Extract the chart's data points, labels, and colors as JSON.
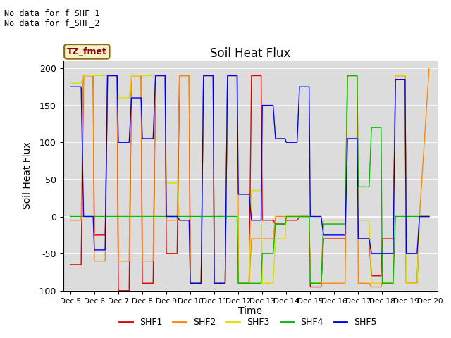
{
  "title": "Soil Heat Flux",
  "ylabel": "Soil Heat Flux",
  "xlabel": "Time",
  "note1": "No data for f_SHF_1",
  "note2": "No data for f_SHF_2",
  "box_label": "TZ_fmet",
  "ylim": [
    -100,
    210
  ],
  "xlim": [
    4.7,
    20.3
  ],
  "background_color": "#dcdcdc",
  "series": {
    "SHF1": {
      "color": "#dd0000",
      "x": [
        5.0,
        5.45,
        5.55,
        5.95,
        6.0,
        6.45,
        6.55,
        6.95,
        7.0,
        7.45,
        7.55,
        7.95,
        8.0,
        8.45,
        8.55,
        8.95,
        9.0,
        9.45,
        9.55,
        9.95,
        10.0,
        10.45,
        10.55,
        10.95,
        11.0,
        11.45,
        11.55,
        11.95,
        12.0,
        12.45,
        12.55,
        12.95,
        13.0,
        13.45,
        13.55,
        13.95,
        14.0,
        14.45,
        14.55,
        14.95,
        15.0,
        15.45,
        15.55,
        15.95,
        16.0,
        16.45,
        16.55,
        16.95,
        17.0,
        17.45,
        17.55,
        17.95,
        18.0,
        18.45,
        18.55,
        18.95,
        19.0,
        19.45,
        19.55,
        19.95
      ],
      "y": [
        -65,
        -65,
        190,
        190,
        -25,
        -25,
        190,
        190,
        -100,
        -100,
        190,
        190,
        -90,
        -90,
        190,
        190,
        -50,
        -50,
        190,
        190,
        -90,
        -90,
        190,
        190,
        -90,
        -90,
        190,
        190,
        -90,
        -90,
        190,
        190,
        -5,
        -5,
        -10,
        -10,
        -5,
        -5,
        0,
        0,
        -95,
        -95,
        -30,
        -30,
        -30,
        -30,
        190,
        190,
        -30,
        -30,
        -80,
        -80,
        -30,
        -30,
        190,
        190,
        -90,
        -90,
        0,
        0
      ]
    },
    "SHF2": {
      "color": "#ff8800",
      "x": [
        5.0,
        5.45,
        5.55,
        5.95,
        6.0,
        6.45,
        6.55,
        6.95,
        7.0,
        7.45,
        7.55,
        7.95,
        8.0,
        8.45,
        8.55,
        8.95,
        9.0,
        9.45,
        9.55,
        9.95,
        10.0,
        10.45,
        10.55,
        10.95,
        11.0,
        11.45,
        11.55,
        11.95,
        12.0,
        12.45,
        12.55,
        12.95,
        13.0,
        13.45,
        13.55,
        13.95,
        14.0,
        14.45,
        14.55,
        14.95,
        15.0,
        15.45,
        15.55,
        15.95,
        16.0,
        16.45,
        16.55,
        16.95,
        17.0,
        17.45,
        17.55,
        17.95,
        18.0,
        18.45,
        18.55,
        18.95,
        19.0,
        19.45,
        19.55,
        19.95
      ],
      "y": [
        -5,
        -5,
        190,
        190,
        -60,
        -60,
        190,
        190,
        -60,
        -60,
        190,
        190,
        -60,
        -60,
        190,
        190,
        -5,
        -5,
        190,
        190,
        -90,
        -90,
        190,
        190,
        -90,
        -90,
        190,
        190,
        -90,
        -90,
        -30,
        -30,
        -30,
        -30,
        0,
        0,
        0,
        0,
        0,
        0,
        -90,
        -90,
        -90,
        -90,
        -90,
        -90,
        190,
        190,
        -90,
        -90,
        -95,
        -95,
        -90,
        -90,
        190,
        190,
        -90,
        -90,
        0,
        200
      ]
    },
    "SHF3": {
      "color": "#dddd00",
      "x": [
        5.0,
        5.45,
        5.55,
        5.95,
        6.0,
        6.45,
        6.55,
        6.95,
        7.0,
        7.45,
        7.55,
        7.95,
        8.0,
        8.45,
        8.55,
        8.95,
        9.0,
        9.45,
        9.55,
        9.95,
        10.0,
        10.45,
        10.55,
        10.95,
        11.0,
        11.45,
        11.55,
        11.95,
        12.0,
        12.45,
        12.55,
        12.95,
        13.0,
        13.45,
        13.55,
        13.95,
        14.0,
        14.45,
        14.55,
        14.95,
        15.0,
        15.45,
        15.55,
        15.95,
        16.0,
        16.45,
        16.55,
        16.95,
        17.0,
        17.45,
        17.55,
        17.95,
        18.0,
        18.45,
        18.55,
        18.95,
        19.0,
        19.45,
        19.55,
        19.95
      ],
      "y": [
        180,
        180,
        190,
        190,
        190,
        190,
        190,
        190,
        160,
        160,
        190,
        190,
        190,
        190,
        190,
        190,
        45,
        45,
        -5,
        -5,
        -90,
        -90,
        190,
        190,
        -90,
        -90,
        190,
        190,
        -90,
        -90,
        35,
        35,
        -90,
        -90,
        -30,
        -30,
        0,
        0,
        0,
        0,
        -90,
        -90,
        -5,
        -5,
        -5,
        -5,
        190,
        190,
        -5,
        -5,
        -90,
        -90,
        -90,
        -90,
        190,
        190,
        -90,
        -90,
        0,
        0
      ]
    },
    "SHF4": {
      "color": "#00bb00",
      "x": [
        5.0,
        5.45,
        10.55,
        10.95,
        11.0,
        11.45,
        11.55,
        11.95,
        12.0,
        12.45,
        12.55,
        12.95,
        13.0,
        13.45,
        13.55,
        13.95,
        14.0,
        14.45,
        14.55,
        14.95,
        15.0,
        15.45,
        15.55,
        15.95,
        16.0,
        16.45,
        16.55,
        16.95,
        17.0,
        17.45,
        17.55,
        17.95,
        18.0,
        18.45,
        18.55,
        18.95,
        19.0,
        19.45,
        19.55,
        19.95
      ],
      "y": [
        0,
        0,
        0,
        0,
        0,
        0,
        0,
        0,
        -90,
        -90,
        -90,
        -90,
        -50,
        -50,
        -10,
        -10,
        0,
        0,
        0,
        0,
        -90,
        -90,
        -10,
        -10,
        -10,
        -10,
        190,
        190,
        40,
        40,
        120,
        120,
        -90,
        -90,
        0,
        0,
        0,
        0,
        0,
        0
      ]
    },
    "SHF5": {
      "color": "#0000ee",
      "x": [
        5.0,
        5.45,
        5.55,
        5.95,
        6.0,
        6.45,
        6.55,
        6.95,
        7.0,
        7.45,
        7.55,
        7.95,
        8.0,
        8.45,
        8.55,
        8.95,
        9.0,
        9.45,
        9.55,
        9.95,
        10.0,
        10.45,
        10.55,
        10.95,
        11.0,
        11.45,
        11.55,
        11.95,
        12.0,
        12.45,
        12.55,
        12.95,
        13.0,
        13.45,
        13.55,
        13.95,
        14.0,
        14.45,
        14.55,
        14.95,
        15.0,
        15.45,
        15.55,
        15.95,
        16.0,
        16.45,
        16.55,
        16.95,
        17.0,
        17.45,
        17.55,
        17.95,
        18.0,
        18.45,
        18.55,
        18.95,
        19.0,
        19.45,
        19.55,
        19.95
      ],
      "y": [
        175,
        175,
        0,
        0,
        -45,
        -45,
        190,
        190,
        100,
        100,
        160,
        160,
        105,
        105,
        190,
        190,
        0,
        0,
        -5,
        -5,
        -90,
        -90,
        190,
        190,
        -90,
        -90,
        190,
        190,
        30,
        30,
        -5,
        -5,
        150,
        150,
        105,
        105,
        100,
        100,
        175,
        175,
        0,
        0,
        -25,
        -25,
        -25,
        -25,
        105,
        105,
        -30,
        -30,
        -50,
        -50,
        -50,
        -50,
        185,
        185,
        -50,
        -50,
        0,
        0
      ]
    }
  },
  "xtick_positions": [
    5,
    6,
    7,
    8,
    9,
    10,
    11,
    12,
    13,
    14,
    15,
    16,
    17,
    18,
    19,
    20
  ],
  "xtick_labels": [
    "Dec 5",
    "Dec 6",
    "Dec 7",
    "Dec 8",
    "Dec 9",
    "Dec 10",
    "Dec 11",
    "Dec 12",
    "Dec 13",
    "Dec 14",
    "Dec 15",
    "Dec 16",
    "Dec 17",
    "Dec 18",
    "Dec 19",
    "Dec 20"
  ],
  "ytick_positions": [
    -100,
    -50,
    0,
    50,
    100,
    150,
    200
  ],
  "legend_labels": [
    "SHF1",
    "SHF2",
    "SHF3",
    "SHF4",
    "SHF5"
  ],
  "legend_colors": [
    "#dd0000",
    "#ff8800",
    "#dddd00",
    "#00bb00",
    "#0000ee"
  ]
}
